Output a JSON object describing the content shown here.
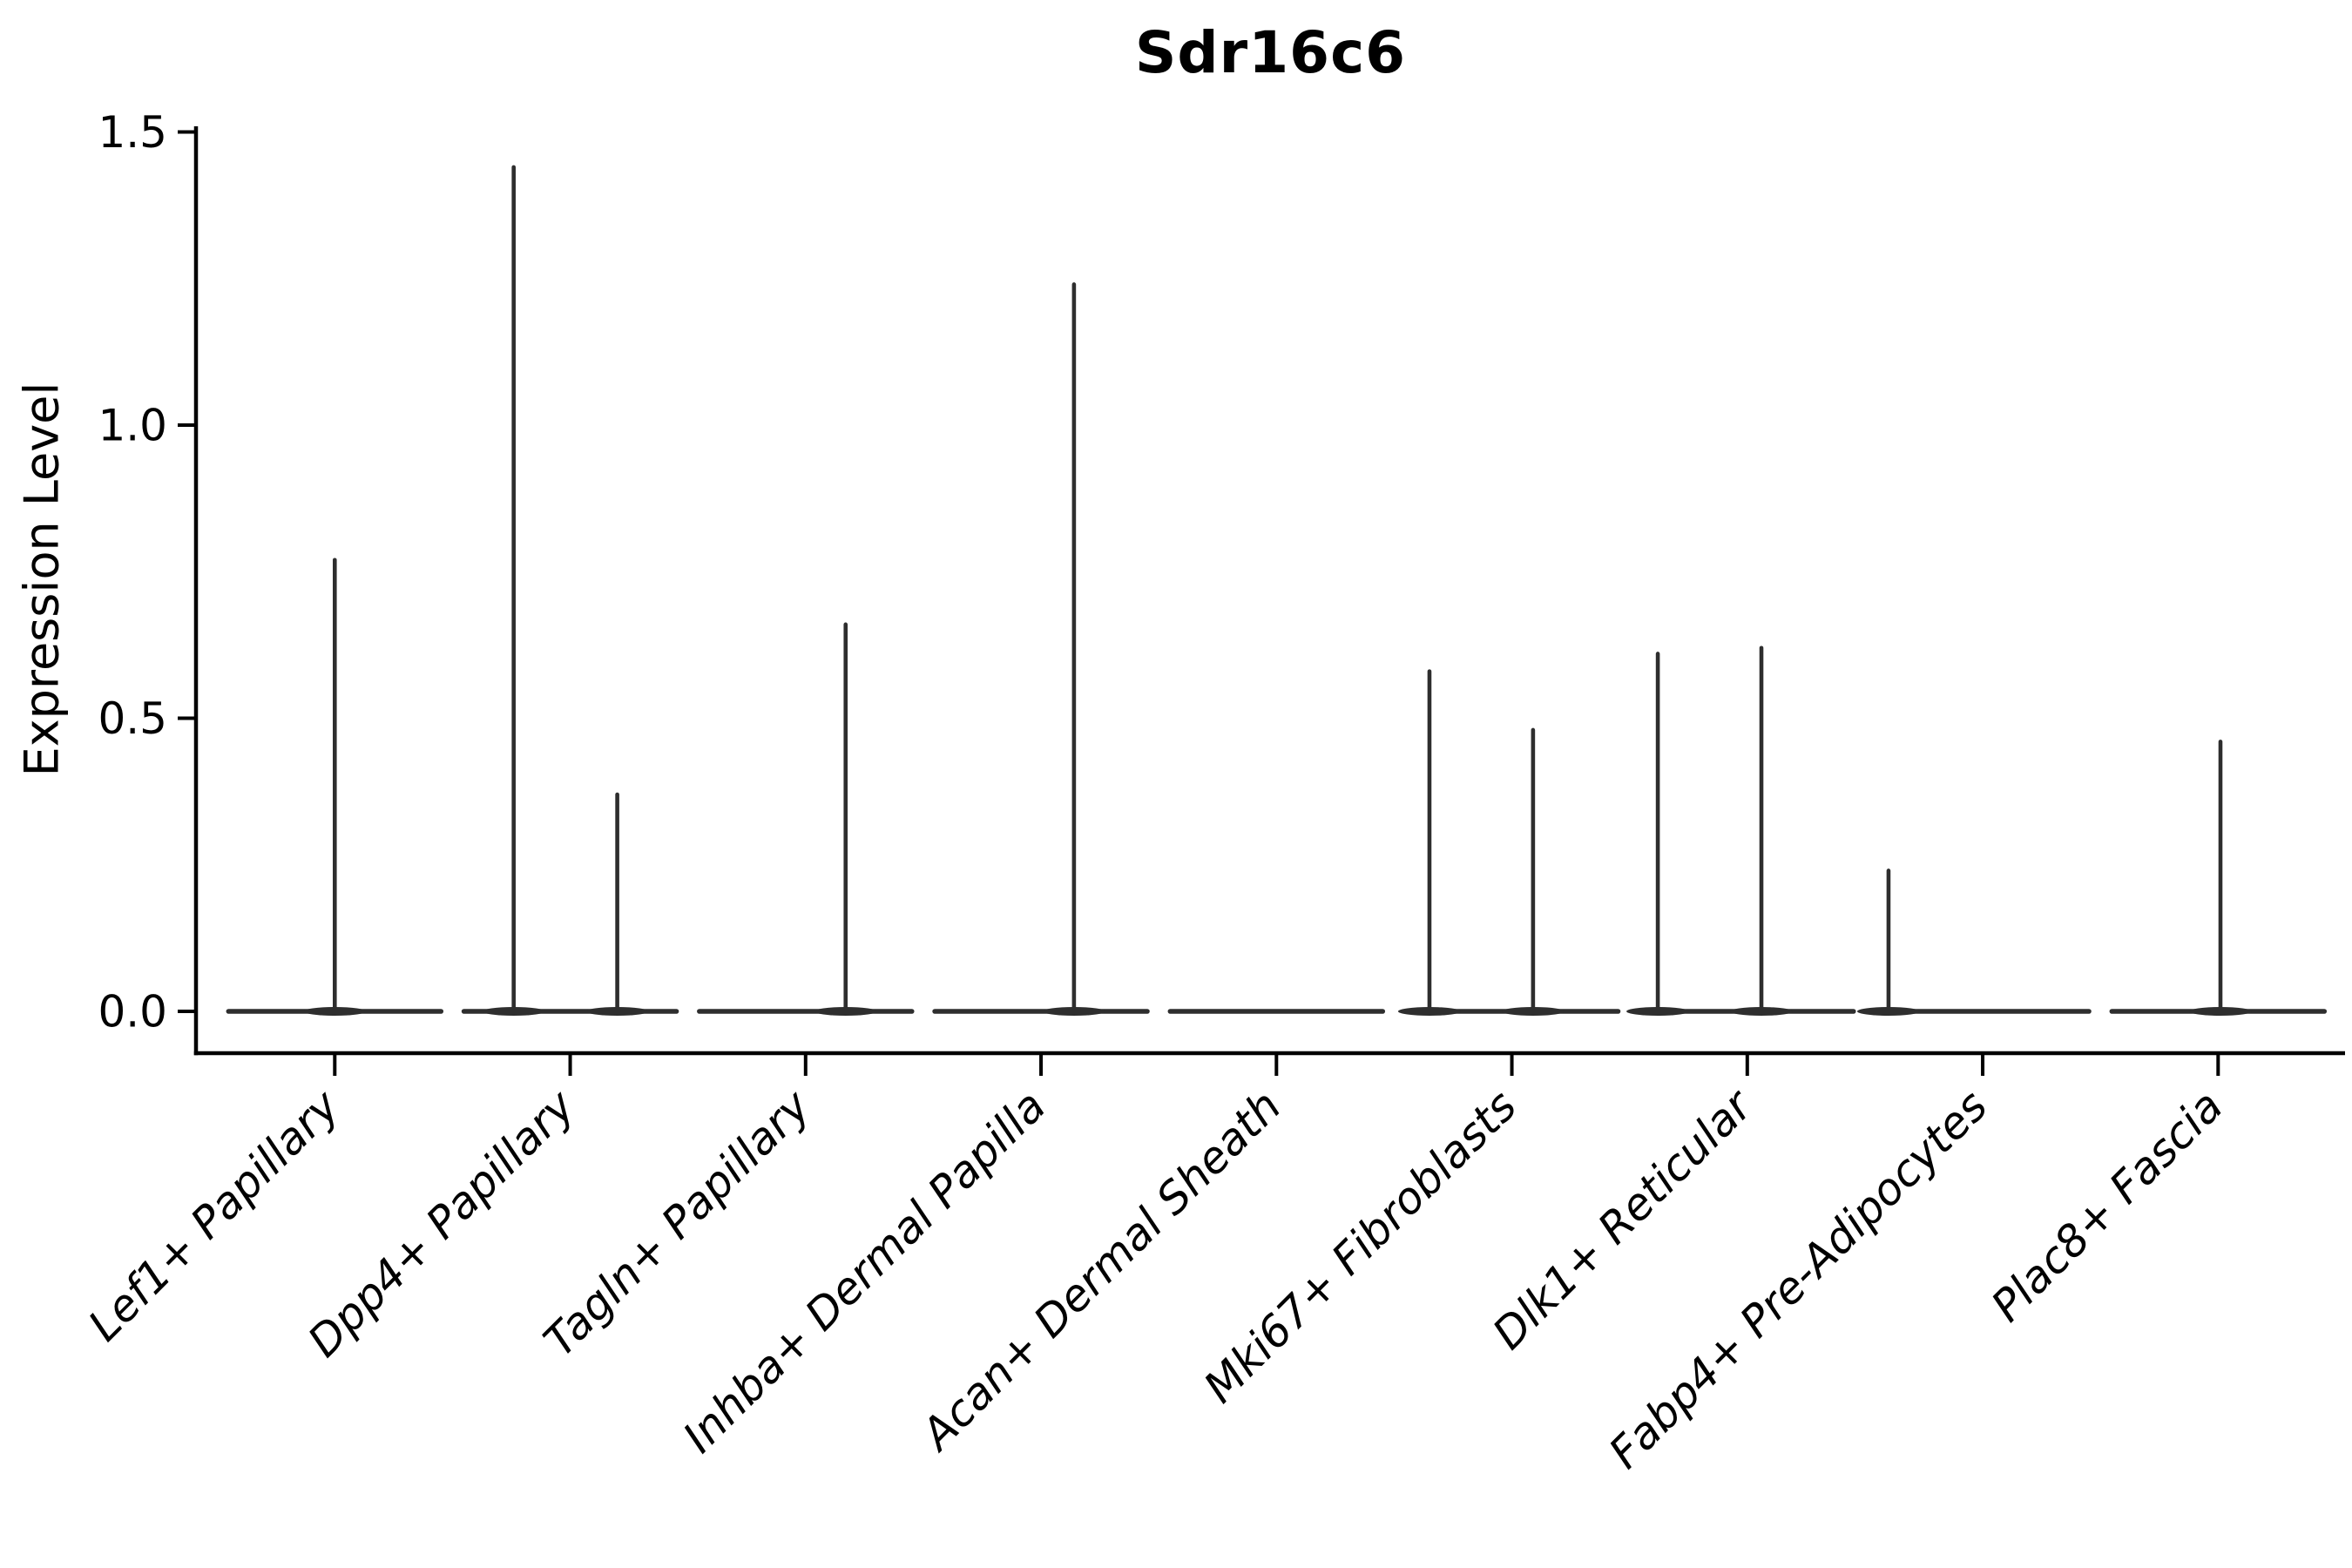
{
  "page": {
    "background": "#ffffff"
  },
  "chart_data": {
    "type": "violin",
    "title": "Sdr16c6",
    "ylabel": "Expression Level",
    "xlabel": "",
    "ylim": [
      0.0,
      1.5
    ],
    "yticks": [
      "0.0",
      "0.5",
      "1.0",
      "1.5"
    ],
    "ytick_values": [
      0.0,
      0.5,
      1.0,
      1.5
    ],
    "grid": false,
    "legend": "none",
    "categories": [
      "Lef1+ Papillary",
      "Dpp4+ Papillary",
      "Tagln+ Papillary",
      "Inhba+ Dermal Papilla",
      "Acan+ Dermal Sheath",
      "Mki67+ Fibroblasts",
      "Dlk1+ Reticular",
      "Fabp4+ Pre-Adipocytes",
      "Plac8+ Fascia"
    ],
    "series": [
      {
        "category": "Lef1+ Papillary",
        "baseline_value": 0.0,
        "spikes": [
          {
            "offset": 0.0,
            "peak": 0.77
          }
        ]
      },
      {
        "category": "Dpp4+ Papillary",
        "baseline_value": 0.0,
        "spikes": [
          {
            "offset": -0.24,
            "peak": 1.44
          },
          {
            "offset": 0.2,
            "peak": 0.37
          }
        ]
      },
      {
        "category": "Tagln+ Papillary",
        "baseline_value": 0.0,
        "spikes": [
          {
            "offset": 0.17,
            "peak": 0.66
          }
        ]
      },
      {
        "category": "Inhba+ Dermal Papilla",
        "baseline_value": 0.0,
        "spikes": [
          {
            "offset": 0.14,
            "peak": 1.24
          }
        ]
      },
      {
        "category": "Acan+ Dermal Sheath",
        "baseline_value": 0.0,
        "spikes": []
      },
      {
        "category": "Mki67+ Fibroblasts",
        "baseline_value": 0.0,
        "spikes": [
          {
            "offset": -0.35,
            "peak": 0.58
          },
          {
            "offset": 0.09,
            "peak": 0.48
          }
        ]
      },
      {
        "category": "Dlk1+ Reticular",
        "baseline_value": 0.0,
        "spikes": [
          {
            "offset": -0.38,
            "peak": 0.61
          },
          {
            "offset": 0.06,
            "peak": 0.62
          }
        ]
      },
      {
        "category": "Fabp4+ Pre-Adipocytes",
        "baseline_value": 0.0,
        "spikes": [
          {
            "offset": -0.4,
            "peak": 0.24
          }
        ]
      },
      {
        "category": "Plac8+ Fascia",
        "baseline_value": 0.0,
        "spikes": [
          {
            "offset": 0.01,
            "peak": 0.46
          }
        ]
      }
    ],
    "colors": {
      "violin": "#2e2e2e",
      "axis": "#000000",
      "text": "#000000"
    }
  }
}
